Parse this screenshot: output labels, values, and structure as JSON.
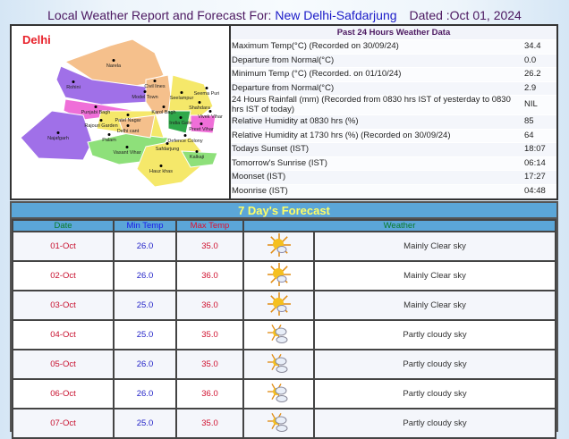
{
  "header": {
    "prefix": "Local Weather Report and Forecast For:",
    "location": "New Delhi-Safdarjung",
    "dated": "Dated :Oct 01, 2024"
  },
  "map": {
    "title": "Delhi",
    "places": [
      "Narela",
      "Rohini",
      "Model Town",
      "Civil lines",
      "Seelampur",
      "Shahdara",
      "Seema Puri",
      "Punjabi Bagh",
      "Patel Nagar",
      "Karol Bagh",
      "Rajouri Garden",
      "Delhi cant",
      "Najafgarh",
      "Palam",
      "Vasant Vihar",
      "Safdarjung",
      "Defence Colony",
      "Preet Vihar",
      "Kalkaji",
      "Hauz khas",
      "India Gate",
      "Vivek Vihar"
    ]
  },
  "past": {
    "title": "Past 24 Hours Weather Data",
    "rows": [
      {
        "label": "Maximum Temp(°C) (Recorded on 30/09/24)",
        "value": "34.4"
      },
      {
        "label": "Departure from Normal(°C)",
        "value": "0.0"
      },
      {
        "label": "Minimum Temp (°C) (Recorded. on 01/10/24)",
        "value": "26.2"
      },
      {
        "label": "Departure from Normal(°C)",
        "value": "2.9"
      },
      {
        "label": "24 Hours Rainfall (mm) (Recorded from 0830 hrs IST of yesterday to 0830 hrs IST of today)",
        "value": "NIL"
      },
      {
        "label": "Relative Humidity at 0830 hrs (%)",
        "value": "85"
      },
      {
        "label": "Relative Humidity at 1730 hrs (%) (Recorded on 30/09/24)",
        "value": "64"
      },
      {
        "label": "Todays Sunset (IST)",
        "value": "18:07"
      },
      {
        "label": "Tomorrow's Sunrise (IST)",
        "value": "06:14"
      },
      {
        "label": "Moonset (IST)",
        "value": "17:27"
      },
      {
        "label": "Moonrise (IST)",
        "value": "04:48"
      }
    ]
  },
  "forecast": {
    "title": "7 Day's Forecast",
    "headers": {
      "date": "Date",
      "min": "Min Temp",
      "max": "Max Temp",
      "weather": "Weather"
    },
    "rows": [
      {
        "date": "01-Oct",
        "min": "26.0",
        "max": "35.0",
        "icon": "mainly-clear-icon",
        "weather": "Mainly Clear sky"
      },
      {
        "date": "02-Oct",
        "min": "26.0",
        "max": "36.0",
        "icon": "mainly-clear-icon",
        "weather": "Mainly Clear sky"
      },
      {
        "date": "03-Oct",
        "min": "25.0",
        "max": "36.0",
        "icon": "mainly-clear-icon",
        "weather": "Mainly Clear sky"
      },
      {
        "date": "04-Oct",
        "min": "25.0",
        "max": "35.0",
        "icon": "partly-cloudy-icon",
        "weather": "Partly cloudy sky"
      },
      {
        "date": "05-Oct",
        "min": "26.0",
        "max": "35.0",
        "icon": "partly-cloudy-icon",
        "weather": "Partly cloudy sky"
      },
      {
        "date": "06-Oct",
        "min": "26.0",
        "max": "36.0",
        "icon": "partly-cloudy-icon",
        "weather": "Partly cloudy sky"
      },
      {
        "date": "07-Oct",
        "min": "25.0",
        "max": "35.0",
        "icon": "partly-cloudy-icon",
        "weather": "Partly cloudy sky"
      }
    ]
  }
}
